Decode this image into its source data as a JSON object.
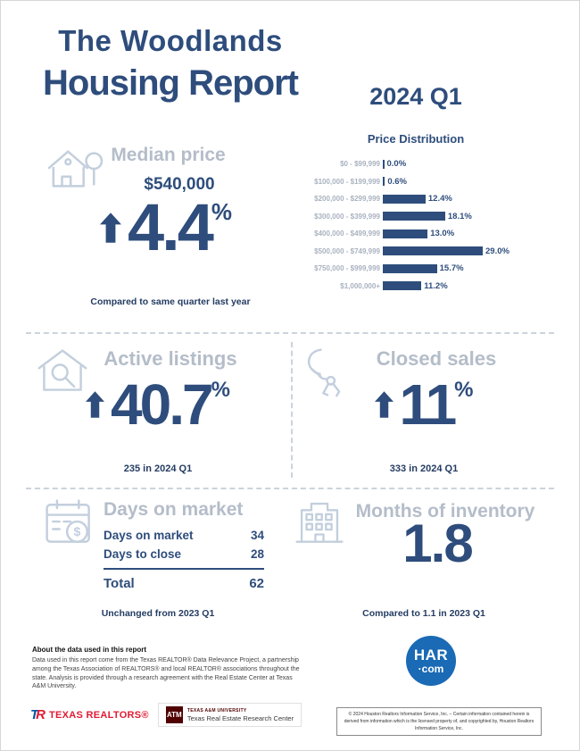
{
  "page": {
    "title_line1": "The Woodlands",
    "title_line2": "Housing Report",
    "quarter": "2024 Q1"
  },
  "median_price": {
    "heading": "Median price",
    "value": "$540,000",
    "change": "4.4",
    "suffix": "%",
    "note": "Compared to same quarter last year"
  },
  "chart_data": {
    "type": "bar",
    "orientation": "horizontal",
    "title": "Price Distribution",
    "categories": [
      "$0 - $99,999",
      "$100,000 - $199,999",
      "$200,000 - $299,999",
      "$300,000 - $399,999",
      "$400,000 - $499,999",
      "$500,000 - $749,999",
      "$750,000 - $999,999",
      "$1,000,000+"
    ],
    "values": [
      0.0,
      0.6,
      12.4,
      18.1,
      13.0,
      29.0,
      15.7,
      11.2
    ],
    "value_labels": [
      "0.0%",
      "0.6%",
      "12.4%",
      "18.1%",
      "13.0%",
      "29.0%",
      "15.7%",
      "11.2%"
    ],
    "xlim": [
      0,
      29
    ],
    "bar_color": "#2e4d7c",
    "legend": "none",
    "grid": false
  },
  "active_listings": {
    "heading": "Active listings",
    "change": "40.7",
    "suffix": "%",
    "note": "235 in 2024 Q1"
  },
  "closed_sales": {
    "heading": "Closed sales",
    "change": "11",
    "suffix": "%",
    "note": "333 in 2024 Q1"
  },
  "days_on_market": {
    "heading": "Days on market",
    "rows": [
      {
        "label": "Days on market",
        "value": "34"
      },
      {
        "label": "Days to close",
        "value": "28"
      }
    ],
    "total_label": "Total",
    "total_value": "62",
    "note": "Unchanged from 2023 Q1"
  },
  "months_of_inventory": {
    "heading": "Months of inventory",
    "value": "1.8",
    "note": "Compared to 1.1 in 2023 Q1"
  },
  "about": {
    "heading": "About the data used in this report",
    "body": "Data used in this report come from the Texas REALTOR® Data Relevance Project, a partnership among the Texas Association of REALTORS® and local REALTOR® associations throughout the state. Analysis is provided through a research agreement with the Real Estate Center at Texas A&M University."
  },
  "footer": {
    "tr_t": "T",
    "tr_r": "R",
    "texas_realtors_label": "TEXAS REALTORS®",
    "tamu_mark": "ATM",
    "tamu_line1": "TEXAS A&M UNIVERSITY",
    "tamu_line2": "Texas Real Estate Research Center",
    "har_top": "HAR",
    "har_bottom": "·com",
    "copyright": "© 2024 Houston Realtors Information Service, Inc. – Certain information contained herein is derived from information which is the licensed property of, and copyrighted by, Houston Realtors Information Service, Inc."
  },
  "colors": {
    "navy": "#2e4d7c",
    "muted_heading": "#b4bdc9",
    "icon_stroke": "#c3cfdd",
    "tr_red": "#e11b33",
    "tamu_maroon": "#500000",
    "har_blue": "#1a6ab5"
  }
}
